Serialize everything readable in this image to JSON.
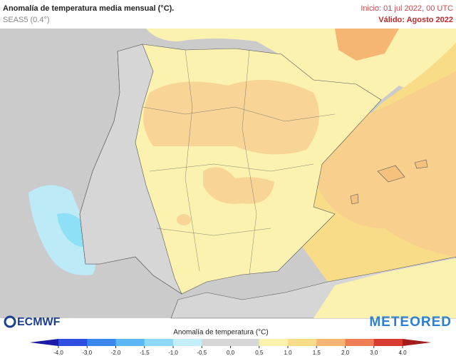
{
  "header": {
    "title": "Anomalía de temperatura media mensual (°C).",
    "model": "SEAS5 (0.4°)",
    "init": "Inicio: 01 jul 2022, 00 UTC",
    "valid": "Válido: Agosto 2022"
  },
  "logos": {
    "left": "ECMWF",
    "right": "METEORED"
  },
  "colorbar": {
    "label": "Anomalía de temperatura (°C)",
    "ticks": [
      {
        "value": -4,
        "label": "-4.0"
      },
      {
        "value": -3,
        "label": "-3.0"
      },
      {
        "value": -2,
        "label": "-2.0"
      },
      {
        "value": -1.5,
        "label": "-1.5"
      },
      {
        "value": -1,
        "label": "-1.0"
      },
      {
        "value": -0.5,
        "label": "-0.5"
      },
      {
        "value": 0,
        "label": "0.0"
      },
      {
        "value": 0.5,
        "label": "0.5"
      },
      {
        "value": 1,
        "label": "1.0"
      },
      {
        "value": 1.5,
        "label": "1.5"
      },
      {
        "value": 2,
        "label": "2.0"
      },
      {
        "value": 3,
        "label": "3.0"
      },
      {
        "value": 4,
        "label": "4.0"
      }
    ],
    "colors": [
      "#1a1aa8",
      "#2d4fe0",
      "#3a86ee",
      "#5cb8f5",
      "#8ed8f8",
      "#c4eefa",
      "#d6d6d6",
      "#d6d6d6",
      "#fbf2b0",
      "#f9dc88",
      "#f5b673",
      "#ef7d55",
      "#d93a2f",
      "#a51c1c"
    ]
  }
}
